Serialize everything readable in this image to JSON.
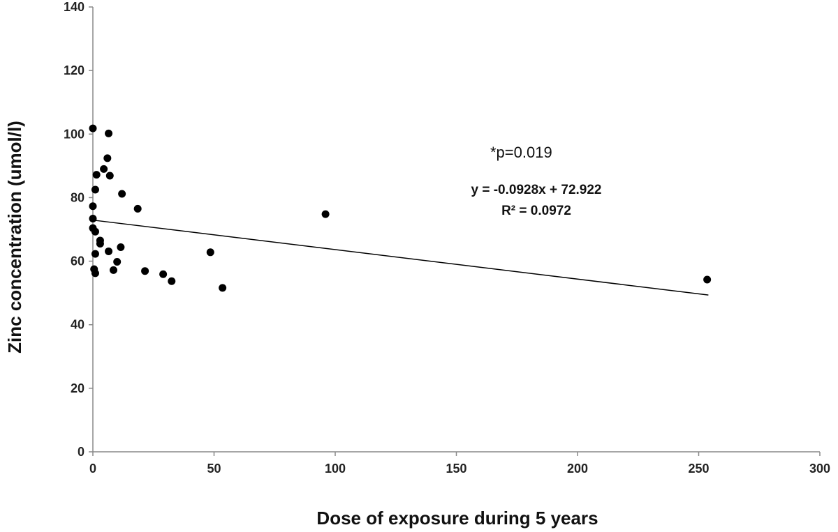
{
  "chart_data": {
    "type": "scatter",
    "title": "",
    "xlabel": "Dose of exposure during 5 years",
    "ylabel": "Zinc concentration (umol/l)",
    "xlim": [
      0,
      300
    ],
    "ylim": [
      0,
      140
    ],
    "x_ticks": [
      0,
      50,
      100,
      150,
      200,
      250,
      300
    ],
    "y_ticks": [
      0,
      20,
      40,
      60,
      80,
      100,
      120,
      140
    ],
    "grid": false,
    "legend": "none",
    "marker_color": "#000000",
    "points": [
      {
        "x": 0,
        "y": 101.8
      },
      {
        "x": 6.5,
        "y": 100.2
      },
      {
        "x": 6,
        "y": 92.4
      },
      {
        "x": 4.5,
        "y": 89.0
      },
      {
        "x": 1.5,
        "y": 87.2
      },
      {
        "x": 7,
        "y": 86.9
      },
      {
        "x": 1,
        "y": 82.5
      },
      {
        "x": 12,
        "y": 81.2
      },
      {
        "x": 0,
        "y": 77.3
      },
      {
        "x": 18.5,
        "y": 76.5
      },
      {
        "x": 96,
        "y": 74.8
      },
      {
        "x": 0,
        "y": 73.4
      },
      {
        "x": 0,
        "y": 70.4
      },
      {
        "x": 1,
        "y": 69.3
      },
      {
        "x": 3,
        "y": 66.5
      },
      {
        "x": 3,
        "y": 65.5
      },
      {
        "x": 11.5,
        "y": 64.4
      },
      {
        "x": 6.5,
        "y": 63.1
      },
      {
        "x": 48.5,
        "y": 62.8
      },
      {
        "x": 1,
        "y": 62.3
      },
      {
        "x": 10,
        "y": 59.8
      },
      {
        "x": 0.5,
        "y": 57.5
      },
      {
        "x": 8.5,
        "y": 57.2
      },
      {
        "x": 21.5,
        "y": 56.9
      },
      {
        "x": 1,
        "y": 56.2
      },
      {
        "x": 29,
        "y": 55.9
      },
      {
        "x": 32.5,
        "y": 53.7
      },
      {
        "x": 253.5,
        "y": 54.2
      },
      {
        "x": 53.5,
        "y": 51.6
      }
    ],
    "trendline": {
      "slope": -0.0928,
      "intercept": 72.922,
      "x_start": 0,
      "x_end": 254,
      "color": "#000000"
    },
    "annotations": {
      "p_value": "*p=0.019",
      "equation": "y = -0.0928x + 72.922",
      "r_squared": "R² = 0.0972"
    }
  }
}
